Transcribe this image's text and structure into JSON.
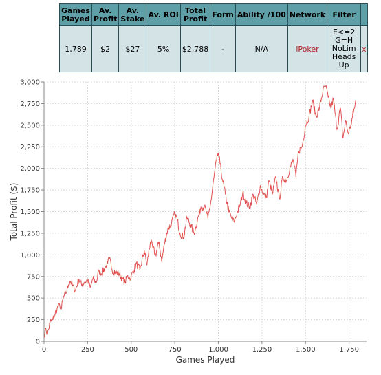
{
  "table": {
    "headers": [
      [
        "Games",
        "Played"
      ],
      [
        "Av.",
        "Profit"
      ],
      [
        "Av.",
        "Stake"
      ],
      [
        "Av. ROI"
      ],
      [
        "Total",
        "Profit"
      ],
      [
        "Form"
      ],
      [
        "Ability /100"
      ],
      [
        "Network"
      ],
      [
        "Filter"
      ],
      [
        ""
      ]
    ],
    "row": {
      "games_played": "1,789",
      "av_profit": "$2",
      "av_stake": "$27",
      "av_roi": "5%",
      "total_profit": "$2,788",
      "form": "-",
      "ability": "N/A",
      "network": "iPoker",
      "filter_lines": [
        "E<=2",
        "G=H",
        "NoLim",
        "Heads",
        "Up"
      ],
      "remove": "x"
    }
  },
  "chart_data": {
    "type": "line",
    "xlabel": "Games Played",
    "ylabel": "Total Profit ($)",
    "xlim": [
      0,
      1850
    ],
    "ylim": [
      0,
      3000
    ],
    "xticks": [
      0,
      250,
      500,
      750,
      1000,
      1250,
      1500,
      1750
    ],
    "xtick_labels": [
      "0",
      "250",
      "500",
      "750",
      "1,000",
      "1,250",
      "1,500",
      "1,750"
    ],
    "yticks": [
      0,
      250,
      500,
      750,
      1000,
      1250,
      1500,
      1750,
      2000,
      2250,
      2500,
      2750,
      3000
    ],
    "ytick_labels": [
      "0",
      "250",
      "500",
      "750",
      "1,000",
      "1,250",
      "1,500",
      "1,750",
      "2,000",
      "2,250",
      "2,500",
      "2,750",
      "3,000"
    ],
    "grid": true,
    "line_color": "#e05050",
    "series": [
      {
        "x": [
          0,
          10,
          20,
          35,
          50,
          60,
          75,
          90,
          100,
          110,
          125,
          140,
          150,
          165,
          180,
          200,
          215,
          230,
          250,
          265,
          280,
          300,
          315,
          330,
          350,
          365,
          375,
          390,
          410,
          430,
          450,
          465,
          480,
          495,
          510,
          530,
          550,
          575,
          590,
          610,
          625,
          640,
          660,
          675,
          690,
          710,
          730,
          750,
          765,
          780,
          800,
          820,
          840,
          860,
          880,
          900,
          920,
          940,
          960,
          975,
          990,
          1000,
          1010,
          1025,
          1040,
          1060,
          1075,
          1090,
          1110,
          1125,
          1140,
          1160,
          1180,
          1200,
          1220,
          1240,
          1260,
          1275,
          1290,
          1310,
          1330,
          1350,
          1370,
          1390,
          1410,
          1430,
          1445,
          1460,
          1480,
          1500,
          1520,
          1540,
          1560,
          1580,
          1600,
          1615,
          1630,
          1645,
          1660,
          1680,
          1700,
          1715,
          1730,
          1745,
          1760,
          1775,
          1785,
          1789
        ],
        "y": [
          60,
          150,
          80,
          220,
          250,
          300,
          380,
          420,
          380,
          500,
          550,
          650,
          700,
          640,
          590,
          720,
          650,
          680,
          700,
          620,
          720,
          680,
          820,
          780,
          850,
          900,
          960,
          830,
          800,
          780,
          720,
          680,
          760,
          720,
          800,
          900,
          820,
          1050,
          880,
          1150,
          1080,
          1000,
          1150,
          920,
          1120,
          1300,
          1350,
          1480,
          1400,
          1250,
          1200,
          1430,
          1350,
          1250,
          1400,
          1550,
          1560,
          1420,
          1650,
          1900,
          2100,
          2180,
          2050,
          1850,
          1700,
          1500,
          1430,
          1380,
          1500,
          1580,
          1720,
          1600,
          1550,
          1700,
          1580,
          1800,
          1700,
          1660,
          1860,
          1700,
          1900,
          1650,
          1900,
          1860,
          2000,
          2100,
          1900,
          2200,
          2250,
          2500,
          2600,
          2780,
          2600,
          2700,
          2900,
          2950,
          2820,
          2700,
          2800,
          2450,
          2700,
          2350,
          2550,
          2400,
          2500,
          2650,
          2750,
          2788
        ]
      }
    ]
  }
}
